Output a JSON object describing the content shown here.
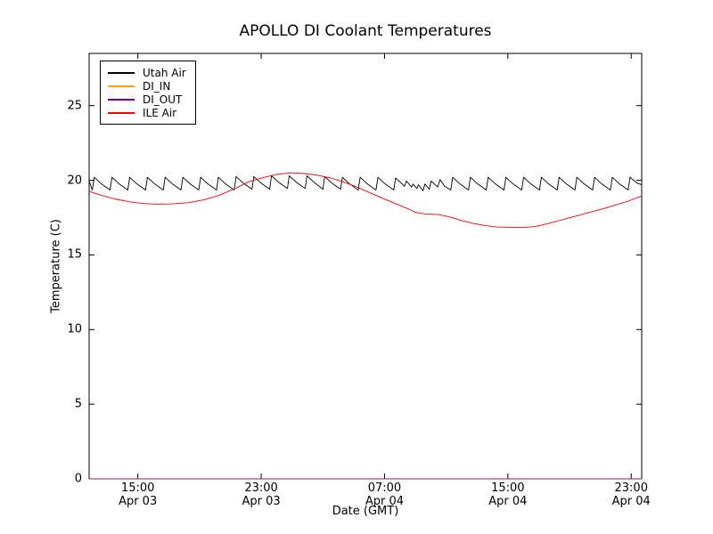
{
  "chart_data": {
    "type": "line",
    "title": "APOLLO DI Coolant Temperatures",
    "xlabel": "Date (GMT)",
    "ylabel": "Temperature (C)",
    "x_unit": "hours since Apr 03 00:00 GMT",
    "xlim": [
      11.84,
      47.68
    ],
    "ylim": [
      0,
      28.5
    ],
    "grid": false,
    "legend_position": "upper left",
    "y_ticks": [
      0,
      5,
      10,
      15,
      20,
      25
    ],
    "x_ticks": [
      {
        "t": 15,
        "time": "15:00",
        "date": "Apr 03"
      },
      {
        "t": 23,
        "time": "23:00",
        "date": "Apr 03"
      },
      {
        "t": 31,
        "time": "07:00",
        "date": "Apr 04"
      },
      {
        "t": 39,
        "time": "15:00",
        "date": "Apr 04"
      },
      {
        "t": 47,
        "time": "23:00",
        "date": "Apr 04"
      }
    ],
    "series": [
      {
        "name": "Utah Air",
        "color": "#000000",
        "width": 0.9,
        "points": [
          [
            11.84,
            19.95
          ],
          [
            12.05,
            19.35
          ],
          [
            12.17,
            20.2
          ],
          [
            12.65,
            19.75
          ],
          [
            13.2,
            19.35
          ],
          [
            13.32,
            20.2
          ],
          [
            13.8,
            19.75
          ],
          [
            14.35,
            19.35
          ],
          [
            14.47,
            20.2
          ],
          [
            14.95,
            19.75
          ],
          [
            15.5,
            19.35
          ],
          [
            15.62,
            20.2
          ],
          [
            16.1,
            19.75
          ],
          [
            16.65,
            19.35
          ],
          [
            16.77,
            20.2
          ],
          [
            17.25,
            19.75
          ],
          [
            17.8,
            19.35
          ],
          [
            17.92,
            20.2
          ],
          [
            18.4,
            19.75
          ],
          [
            18.95,
            19.35
          ],
          [
            19.07,
            20.2
          ],
          [
            19.55,
            19.75
          ],
          [
            20.1,
            19.35
          ],
          [
            20.22,
            20.2
          ],
          [
            20.7,
            19.75
          ],
          [
            21.25,
            19.35
          ],
          [
            21.37,
            20.25
          ],
          [
            21.85,
            19.8
          ],
          [
            22.4,
            19.4
          ],
          [
            22.52,
            20.25
          ],
          [
            23.0,
            19.8
          ],
          [
            23.55,
            19.4
          ],
          [
            23.67,
            20.3
          ],
          [
            24.15,
            19.85
          ],
          [
            24.7,
            19.45
          ],
          [
            24.82,
            20.3
          ],
          [
            25.3,
            19.85
          ],
          [
            25.85,
            19.45
          ],
          [
            25.97,
            20.3
          ],
          [
            26.45,
            19.85
          ],
          [
            27.0,
            19.4
          ],
          [
            27.12,
            20.25
          ],
          [
            27.6,
            19.8
          ],
          [
            28.15,
            19.4
          ],
          [
            28.27,
            20.2
          ],
          [
            28.75,
            19.75
          ],
          [
            29.3,
            19.35
          ],
          [
            29.42,
            20.2
          ],
          [
            29.9,
            19.75
          ],
          [
            30.45,
            19.35
          ],
          [
            30.57,
            20.2
          ],
          [
            31.05,
            19.75
          ],
          [
            31.6,
            19.35
          ],
          [
            31.72,
            20.15
          ],
          [
            32.1,
            19.8
          ],
          [
            32.3,
            19.6
          ],
          [
            32.42,
            19.95
          ],
          [
            32.75,
            19.55
          ],
          [
            32.85,
            19.75
          ],
          [
            33.1,
            19.45
          ],
          [
            33.2,
            19.7
          ],
          [
            33.5,
            19.3
          ],
          [
            33.62,
            19.75
          ],
          [
            33.9,
            19.4
          ],
          [
            34.02,
            19.95
          ],
          [
            34.45,
            19.55
          ],
          [
            34.6,
            20.05
          ],
          [
            34.9,
            19.6
          ],
          [
            35.3,
            19.35
          ],
          [
            35.42,
            20.2
          ],
          [
            35.9,
            19.75
          ],
          [
            36.45,
            19.35
          ],
          [
            36.57,
            20.2
          ],
          [
            37.05,
            19.75
          ],
          [
            37.6,
            19.35
          ],
          [
            37.72,
            20.2
          ],
          [
            38.2,
            19.75
          ],
          [
            38.75,
            19.35
          ],
          [
            38.87,
            20.2
          ],
          [
            39.35,
            19.75
          ],
          [
            39.9,
            19.35
          ],
          [
            40.02,
            20.2
          ],
          [
            40.5,
            19.75
          ],
          [
            41.05,
            19.35
          ],
          [
            41.17,
            20.2
          ],
          [
            41.65,
            19.75
          ],
          [
            42.2,
            19.35
          ],
          [
            42.32,
            20.2
          ],
          [
            42.8,
            19.75
          ],
          [
            43.35,
            19.35
          ],
          [
            43.47,
            20.2
          ],
          [
            43.95,
            19.75
          ],
          [
            44.5,
            19.35
          ],
          [
            44.62,
            20.2
          ],
          [
            45.1,
            19.75
          ],
          [
            45.65,
            19.35
          ],
          [
            45.77,
            20.2
          ],
          [
            46.25,
            19.75
          ],
          [
            46.8,
            19.35
          ],
          [
            46.92,
            20.2
          ],
          [
            47.4,
            19.8
          ],
          [
            47.68,
            19.7
          ]
        ]
      },
      {
        "name": "DI_IN",
        "color": "#ffa500",
        "width": 1,
        "points": [
          [
            11.84,
            0
          ],
          [
            47.68,
            0
          ]
        ]
      },
      {
        "name": "DI_OUT",
        "color": "#800080",
        "width": 1,
        "opacity": 0.85,
        "points": [
          [
            11.84,
            0
          ],
          [
            47.68,
            0
          ]
        ]
      },
      {
        "name": "ILE Air",
        "color": "#ff0000",
        "width": 0.9,
        "points": [
          [
            11.84,
            19.25
          ],
          [
            12.6,
            19.0
          ],
          [
            13.5,
            18.75
          ],
          [
            14.5,
            18.55
          ],
          [
            15.3,
            18.45
          ],
          [
            16.2,
            18.4
          ],
          [
            17.2,
            18.42
          ],
          [
            18.3,
            18.5
          ],
          [
            19.3,
            18.7
          ],
          [
            20.3,
            19.0
          ],
          [
            21.2,
            19.4
          ],
          [
            22.2,
            19.9
          ],
          [
            23.2,
            20.2
          ],
          [
            24.0,
            20.4
          ],
          [
            24.9,
            20.5
          ],
          [
            25.8,
            20.45
          ],
          [
            26.6,
            20.35
          ],
          [
            27.5,
            20.15
          ],
          [
            28.3,
            19.9
          ],
          [
            29.2,
            19.55
          ],
          [
            30.2,
            19.1
          ],
          [
            31.2,
            18.65
          ],
          [
            31.9,
            18.35
          ],
          [
            32.5,
            18.1
          ],
          [
            33.0,
            17.85
          ],
          [
            33.6,
            17.75
          ],
          [
            34.5,
            17.7
          ],
          [
            35.2,
            17.55
          ],
          [
            36.0,
            17.3
          ],
          [
            36.8,
            17.1
          ],
          [
            37.6,
            16.95
          ],
          [
            38.3,
            16.87
          ],
          [
            39.2,
            16.85
          ],
          [
            40.0,
            16.85
          ],
          [
            40.8,
            16.9
          ],
          [
            41.6,
            17.1
          ],
          [
            42.5,
            17.35
          ],
          [
            43.4,
            17.6
          ],
          [
            44.3,
            17.85
          ],
          [
            45.2,
            18.1
          ],
          [
            46.0,
            18.35
          ],
          [
            46.8,
            18.6
          ],
          [
            47.68,
            18.95
          ]
        ]
      }
    ]
  }
}
